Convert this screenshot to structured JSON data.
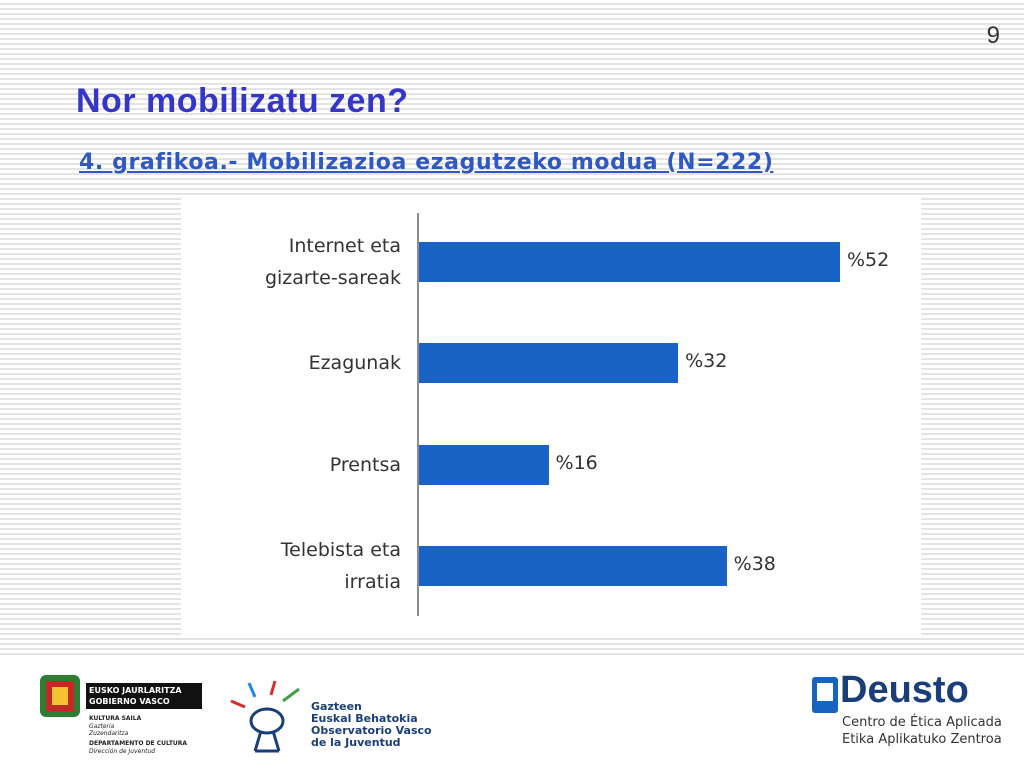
{
  "page_number": "9",
  "title": "Nor mobilizatu zen?",
  "chart_data": {
    "type": "bar",
    "orientation": "horizontal",
    "title": "4. grafikoa.- Mobilizazioa ezagutzeko modua (N=222)",
    "categories": [
      "Internet eta gizarte-sareak",
      "Ezagunak",
      "Prentsa",
      "Telebista eta irratia"
    ],
    "values": [
      52,
      32,
      16,
      38
    ],
    "value_labels": [
      "%52",
      "%32",
      "%16",
      "%38"
    ],
    "color": "#1a63c6"
  },
  "footer": {
    "gov": {
      "name_eu": "EUSKO JAURLARITZA",
      "name_es": "GOBIERNO VASCO",
      "dept_eu": "KULTURA SAILA",
      "sub_eu": "Gazteria Zuzendaritza",
      "dept_es": "DEPARTAMENTO DE CULTURA",
      "sub_es": "Dirección de Juventud"
    },
    "observatory": [
      "Gazteen",
      "Euskal Behatokia",
      "Observatorio Vasco",
      "de la Juventud"
    ],
    "deusto": {
      "name": "Deusto",
      "line1": "Centro de Ética Aplicada",
      "line2": "Etika Aplikatuko Zentroa"
    }
  }
}
